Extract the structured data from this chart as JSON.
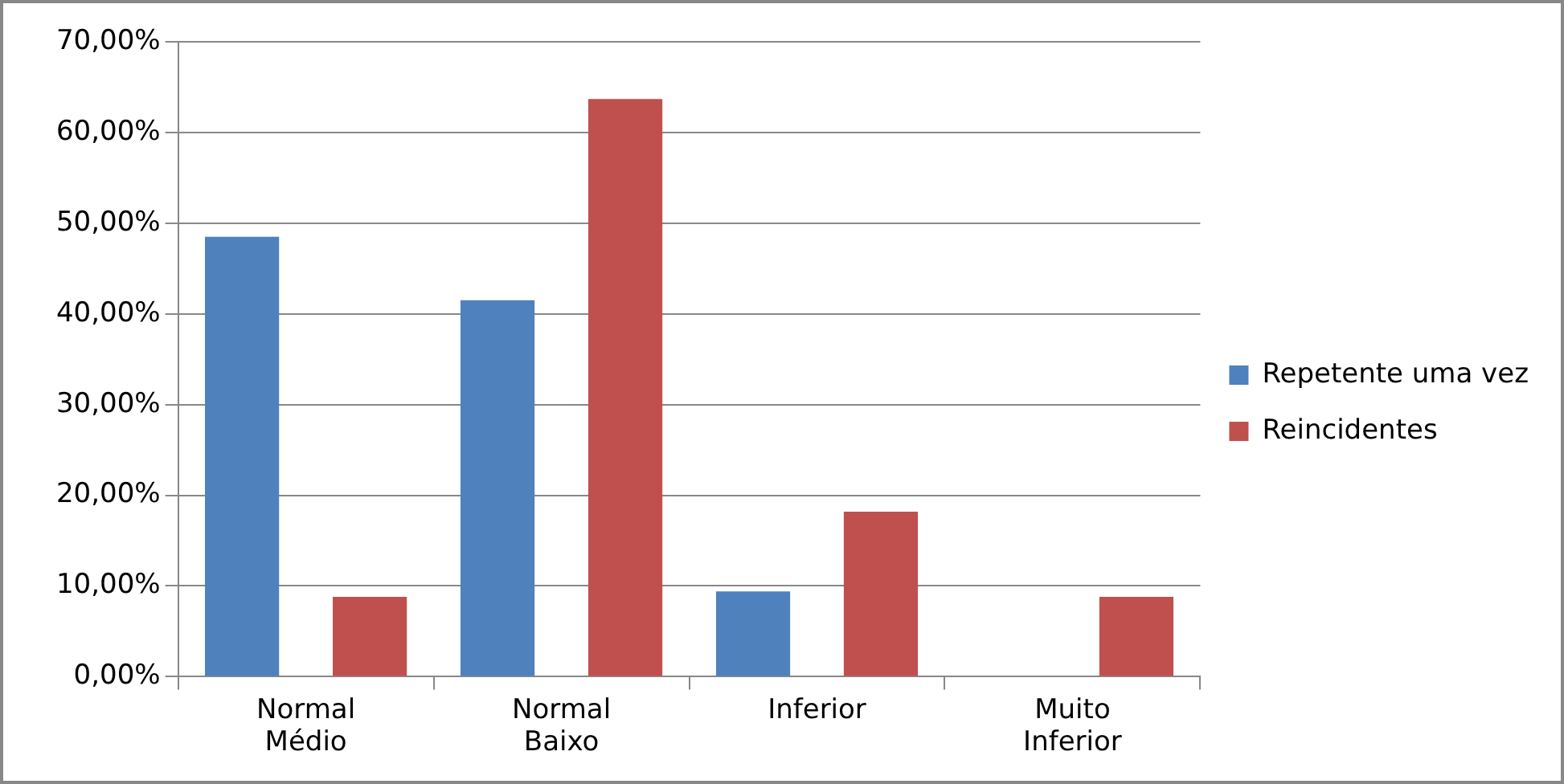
{
  "chart_data": {
    "type": "bar",
    "categories": [
      "Normal Médio",
      "Normal Baixo",
      "Inferior",
      "Muito Inferior"
    ],
    "series": [
      {
        "name": "Repetente uma vez",
        "color": "#4f81bd",
        "values": [
          48.5,
          41.5,
          9.4,
          0
        ]
      },
      {
        "name": "Reincidentes",
        "color": "#c0504d",
        "values": [
          8.8,
          63.7,
          18.2,
          8.8
        ]
      }
    ],
    "ylim": [
      0,
      70
    ],
    "yticks": [
      {
        "value": 0,
        "label": "0,00%"
      },
      {
        "value": 10,
        "label": "10,00%"
      },
      {
        "value": 20,
        "label": "20,00%"
      },
      {
        "value": 30,
        "label": "30,00%"
      },
      {
        "value": 40,
        "label": "40,00%"
      },
      {
        "value": 50,
        "label": "50,00%"
      },
      {
        "value": 60,
        "label": "60,00%"
      },
      {
        "value": 70,
        "label": "70,00%"
      }
    ],
    "grid": "y",
    "legend": "right"
  }
}
